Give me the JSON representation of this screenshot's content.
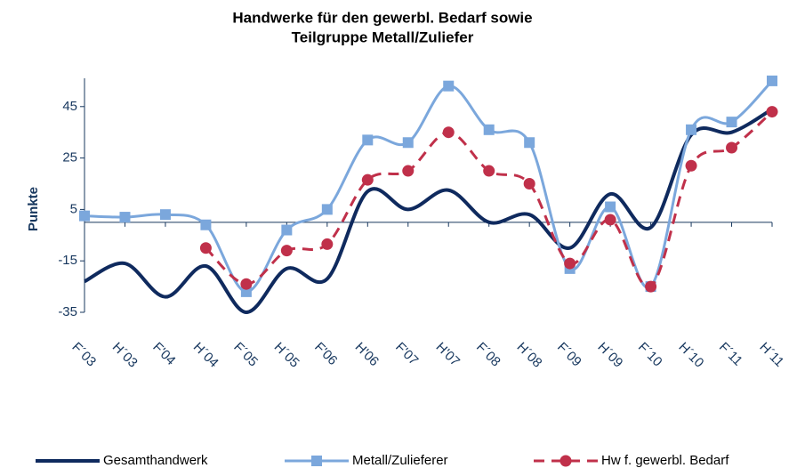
{
  "chart_data": {
    "type": "line",
    "title": [
      "Handwerke für den gewerbl. Bedarf sowie",
      "Teilgruppe Metall/Zuliefer"
    ],
    "ylabel": "Punkte",
    "categories": [
      "F´03",
      "H´03",
      "F'04",
      "H´04",
      "F´05",
      "H´05",
      "F'06",
      "H'06",
      "F'07",
      "H'07",
      "F´08",
      "H´08",
      "F´09",
      "H´09",
      "F´10",
      "H´10",
      "F´11",
      "H´11"
    ],
    "series": [
      {
        "name": "Gesamthandwerk",
        "color": "#0f2a5e",
        "values": [
          -23,
          -16,
          -29,
          -17,
          -35,
          -18,
          -22,
          12,
          5,
          12.5,
          0,
          3,
          -10,
          11,
          -2,
          34,
          35,
          44
        ]
      },
      {
        "name": "Metall/Zulieferer",
        "color": "#7ba7dc",
        "values": [
          2.5,
          2,
          3,
          -1,
          -27,
          -3,
          5,
          32,
          31,
          53,
          36,
          31,
          -18,
          6,
          -25,
          36,
          39,
          55
        ]
      },
      {
        "name": "Hw f. gewerbl. Bedarf",
        "color": "#c0304a",
        "values": [
          null,
          null,
          null,
          -10,
          -24,
          -11,
          -8.5,
          16.5,
          20,
          35,
          20,
          15,
          -16,
          1,
          -25,
          22,
          29,
          43
        ]
      }
    ],
    "ylim": [
      -35,
      56
    ],
    "yticks": [
      45,
      25,
      5,
      -15,
      -35
    ]
  }
}
